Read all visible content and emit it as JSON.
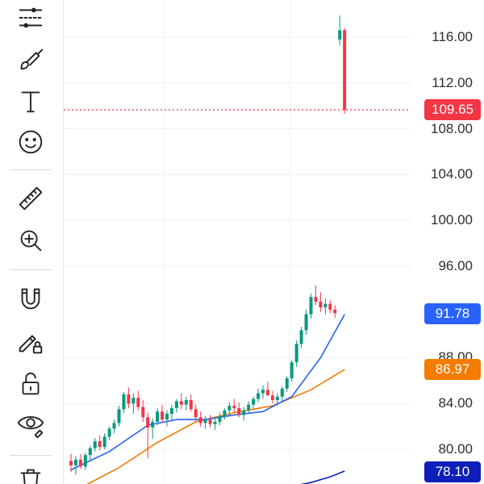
{
  "toolbar": {
    "tools": [
      {
        "name": "pattern-tool-icon"
      },
      {
        "name": "brush-tool-icon"
      },
      {
        "name": "text-tool-icon",
        "glyph": "T"
      },
      {
        "name": "emoji-tool-icon"
      },
      {
        "name": "ruler-tool-icon"
      },
      {
        "name": "zoom-in-tool-icon"
      },
      {
        "name": "magnet-tool-icon"
      },
      {
        "name": "lock-drawing-tool-icon"
      },
      {
        "name": "unlock-tool-icon"
      },
      {
        "name": "eye-hide-tool-icon"
      },
      {
        "name": "trash-tool-icon"
      }
    ]
  },
  "price_axis": {
    "labels": [
      "116.00",
      "112.00",
      "108.00",
      "104.00",
      "100.00",
      "96.00",
      "88.00",
      "84.00",
      "80.00"
    ],
    "badges": [
      {
        "value": "109.65",
        "color": "#f23645"
      },
      {
        "value": "91.78",
        "color": "#2962ff"
      },
      {
        "value": "86.97",
        "color": "#f57c00"
      },
      {
        "value": "78.10",
        "color": "#0d1fb8"
      }
    ]
  },
  "colors": {
    "up": "#089981",
    "down": "#f23645",
    "ma_fast": "#2962ff",
    "ma_slow": "#f57c00",
    "ma_long": "#0d1fb8",
    "grid": "#eef0f3"
  },
  "chart_data": {
    "type": "candlestick",
    "y_range": [
      77.5,
      118.5
    ],
    "last_price": 109.65,
    "y_ticks": [
      80,
      84,
      88,
      96,
      100,
      104,
      108,
      112,
      116
    ],
    "ohlc": [
      [
        79.0,
        79.6,
        78.0,
        78.6
      ],
      [
        78.6,
        79.4,
        77.8,
        79.1
      ],
      [
        79.1,
        79.6,
        78.3,
        78.5
      ],
      [
        78.5,
        79.7,
        78.2,
        79.5
      ],
      [
        79.5,
        80.3,
        79.0,
        80.1
      ],
      [
        80.1,
        81.0,
        79.8,
        80.7
      ],
      [
        80.7,
        81.2,
        79.9,
        80.2
      ],
      [
        80.2,
        81.4,
        80.0,
        81.1
      ],
      [
        81.1,
        82.0,
        80.8,
        81.8
      ],
      [
        81.8,
        82.6,
        81.4,
        82.3
      ],
      [
        82.3,
        83.8,
        82.0,
        83.5
      ],
      [
        83.5,
        85.0,
        83.2,
        84.8
      ],
      [
        84.8,
        85.4,
        83.6,
        84.0
      ],
      [
        84.0,
        84.9,
        83.1,
        84.5
      ],
      [
        84.5,
        85.1,
        83.4,
        83.7
      ],
      [
        83.7,
        84.3,
        82.4,
        82.8
      ],
      [
        82.8,
        83.2,
        79.2,
        81.9
      ],
      [
        81.9,
        82.7,
        80.9,
        82.4
      ],
      [
        82.4,
        83.6,
        82.1,
        83.3
      ],
      [
        83.3,
        83.9,
        82.3,
        82.6
      ],
      [
        82.6,
        83.4,
        82.0,
        83.1
      ],
      [
        83.1,
        83.9,
        82.6,
        83.6
      ],
      [
        83.6,
        84.4,
        83.2,
        84.2
      ],
      [
        84.2,
        84.9,
        83.5,
        83.9
      ],
      [
        83.9,
        84.6,
        83.4,
        84.3
      ],
      [
        84.3,
        84.8,
        83.3,
        83.5
      ],
      [
        83.5,
        83.9,
        82.4,
        82.8
      ],
      [
        82.8,
        83.3,
        82.0,
        82.3
      ],
      [
        82.3,
        82.9,
        81.8,
        82.6
      ],
      [
        82.6,
        83.0,
        81.9,
        82.2
      ],
      [
        82.2,
        82.7,
        81.7,
        82.4
      ],
      [
        82.4,
        83.2,
        82.1,
        82.9
      ],
      [
        82.9,
        83.6,
        82.6,
        83.4
      ],
      [
        83.4,
        84.1,
        83.0,
        83.8
      ],
      [
        83.8,
        84.4,
        83.2,
        83.6
      ],
      [
        83.6,
        84.1,
        82.8,
        83.0
      ],
      [
        83.0,
        83.7,
        82.5,
        83.4
      ],
      [
        83.4,
        84.2,
        83.1,
        83.9
      ],
      [
        83.9,
        84.6,
        83.5,
        84.4
      ],
      [
        84.4,
        85.3,
        84.1,
        84.9
      ],
      [
        84.9,
        85.6,
        84.4,
        85.2
      ],
      [
        85.2,
        85.9,
        84.9,
        84.7
      ],
      [
        84.7,
        85.1,
        84.0,
        84.3
      ],
      [
        84.3,
        84.9,
        83.8,
        84.6
      ],
      [
        84.6,
        85.5,
        84.2,
        85.3
      ],
      [
        85.3,
        86.4,
        85.0,
        86.2
      ],
      [
        86.2,
        87.8,
        85.9,
        87.6
      ],
      [
        87.6,
        89.5,
        87.2,
        89.2
      ],
      [
        89.2,
        90.7,
        88.8,
        90.4
      ],
      [
        90.4,
        92.2,
        90.0,
        91.8
      ],
      [
        91.8,
        93.6,
        91.4,
        93.3
      ],
      [
        93.3,
        94.3,
        92.6,
        92.9
      ],
      [
        92.9,
        93.7,
        92.0,
        92.4
      ],
      [
        92.4,
        93.2,
        91.8,
        92.7
      ],
      [
        92.7,
        93.0,
        91.9,
        92.2
      ],
      [
        92.2,
        92.6,
        91.5,
        91.9
      ],
      [
        115.8,
        117.9,
        115.3,
        116.6
      ],
      [
        116.6,
        116.8,
        109.3,
        109.65
      ]
    ],
    "ma_fast_pts": [
      [
        0,
        78.2
      ],
      [
        8,
        79.8
      ],
      [
        16,
        82.1
      ],
      [
        22,
        82.6
      ],
      [
        28,
        82.6
      ],
      [
        34,
        83.0
      ],
      [
        40,
        83.3
      ],
      [
        46,
        84.6
      ],
      [
        52,
        88.0
      ],
      [
        57,
        91.78
      ]
    ],
    "ma_slow_pts": [
      [
        0,
        76.2
      ],
      [
        10,
        78.4
      ],
      [
        18,
        80.6
      ],
      [
        26,
        82.4
      ],
      [
        34,
        83.2
      ],
      [
        42,
        83.8
      ],
      [
        50,
        85.2
      ],
      [
        57,
        86.97
      ]
    ],
    "ma_long_pts": [
      [
        44,
        76.6
      ],
      [
        50,
        77.1
      ],
      [
        54,
        77.6
      ],
      [
        57,
        78.1
      ]
    ]
  }
}
